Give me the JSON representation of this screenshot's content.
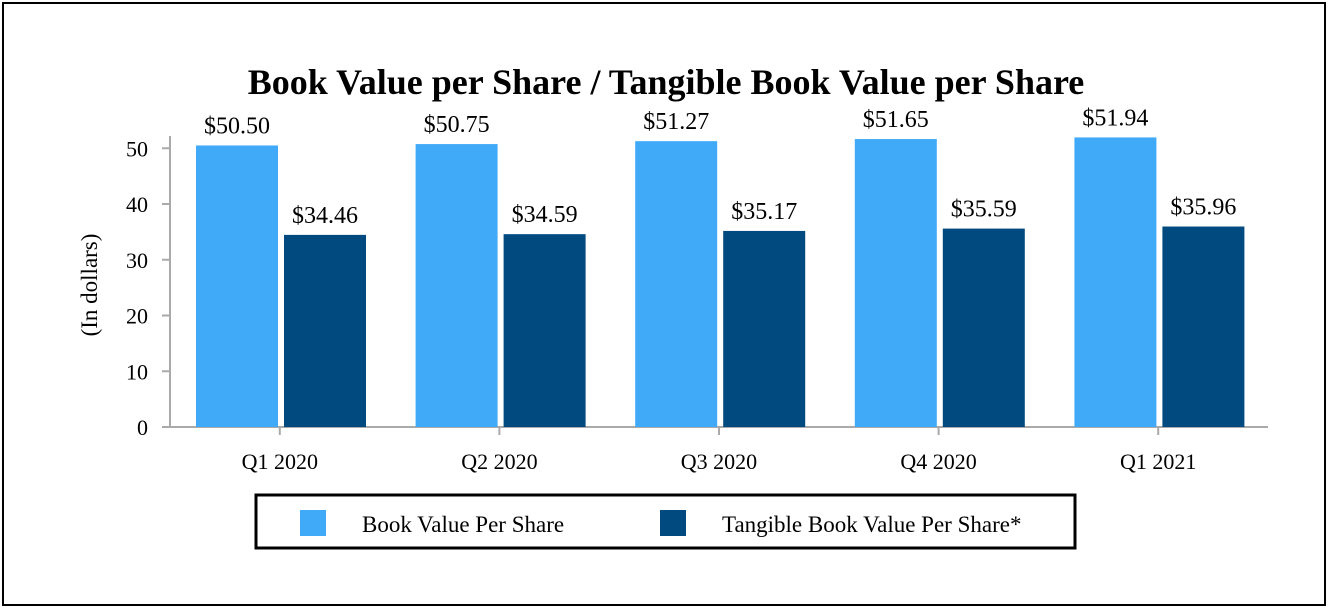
{
  "chart_data": {
    "type": "bar",
    "title": "Book Value per Share / Tangible Book Value per Share",
    "ylabel": "(In dollars)",
    "xlabel": "",
    "categories": [
      "Q1 2020",
      "Q2 2020",
      "Q3 2020",
      "Q4 2020",
      "Q1 2021"
    ],
    "yticks": [
      "0",
      "10",
      "20",
      "30",
      "40",
      "50"
    ],
    "ylim": [
      0,
      52
    ],
    "grid": false,
    "legend_position": "bottom",
    "series": [
      {
        "name": "Book Value Per Share",
        "color": "#41aaf8",
        "values": [
          50.5,
          50.75,
          51.27,
          51.65,
          51.94
        ],
        "labels": [
          "$50.50",
          "$50.75",
          "$51.27",
          "$51.65",
          "$51.94"
        ]
      },
      {
        "name": "Tangible Book Value Per Share*",
        "color": "#004a7f",
        "values": [
          34.46,
          34.59,
          35.17,
          35.59,
          35.96
        ],
        "labels": [
          "$34.46",
          "$34.59",
          "$35.17",
          "$35.59",
          "$35.96"
        ]
      }
    ]
  }
}
